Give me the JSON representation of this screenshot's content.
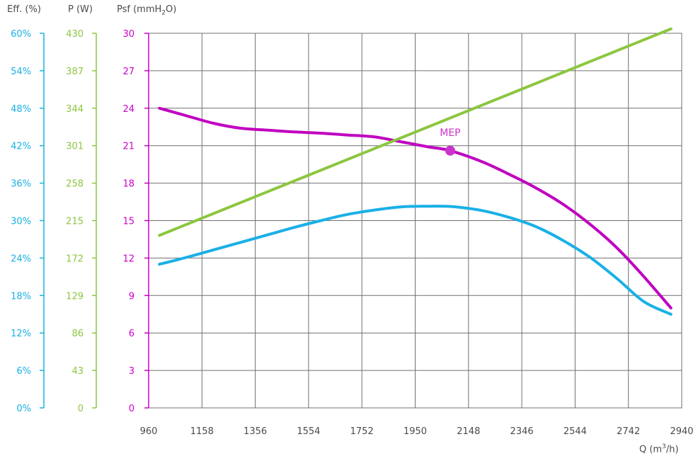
{
  "chart_data": {
    "type": "line",
    "axes": {
      "efficiency": {
        "label": "Eff. (%)",
        "ticks": [
          "0%",
          "6%",
          "12%",
          "18%",
          "24%",
          "30%",
          "36%",
          "42%",
          "48%",
          "54%",
          "60%"
        ],
        "range": [
          0,
          60
        ],
        "color": "#1ab0e6"
      },
      "power": {
        "label": "P (W)",
        "ticks": [
          "0",
          "43",
          "86",
          "129",
          "172",
          "215",
          "258",
          "301",
          "344",
          "387",
          "430"
        ],
        "range": [
          0,
          430
        ],
        "color": "#8cc63f"
      },
      "pressure": {
        "label_prefix": "Psf (mmH",
        "label_sub": "2",
        "label_suffix": "O)",
        "ticks": [
          "0",
          "3",
          "6",
          "9",
          "12",
          "15",
          "18",
          "21",
          "24",
          "27",
          "30"
        ],
        "range": [
          0,
          30
        ],
        "color": "#cc00cc"
      },
      "flow": {
        "label_prefix": "Q (m",
        "label_sup": "3",
        "label_suffix": "/h)",
        "ticks": [
          "960",
          "1158",
          "1356",
          "1554",
          "1752",
          "1950",
          "2148",
          "2346",
          "2544",
          "2742",
          "2940"
        ],
        "range": [
          960,
          2940
        ]
      }
    },
    "series": [
      {
        "axis": "pressure",
        "color": "#c000c0",
        "x": [
          1000,
          1100,
          1200,
          1300,
          1400,
          1500,
          1600,
          1700,
          1800,
          1900,
          2000,
          2080,
          2200,
          2300,
          2400,
          2500,
          2600,
          2700,
          2800,
          2900
        ],
        "y": [
          24.0,
          23.4,
          22.8,
          22.4,
          22.25,
          22.1,
          22.0,
          21.85,
          21.7,
          21.3,
          20.9,
          20.6,
          19.7,
          18.7,
          17.6,
          16.3,
          14.7,
          12.8,
          10.5,
          8.0
        ]
      },
      {
        "axis": "power",
        "color": "#8cc63f",
        "x": [
          1000,
          2900
        ],
        "y": [
          198,
          435
        ]
      },
      {
        "axis": "efficiency",
        "color": "#1ab0e6",
        "x": [
          1000,
          1100,
          1200,
          1300,
          1400,
          1500,
          1600,
          1700,
          1800,
          1900,
          2000,
          2050,
          2100,
          2200,
          2300,
          2400,
          2500,
          2600,
          2700,
          2800,
          2900
        ],
        "y": [
          23.0,
          24.1,
          25.3,
          26.5,
          27.7,
          28.9,
          30.0,
          31.0,
          31.7,
          32.2,
          32.3,
          32.3,
          32.2,
          31.6,
          30.5,
          29.0,
          26.8,
          24.1,
          20.7,
          17.0,
          15.0
        ]
      }
    ],
    "annotations": [
      {
        "text": "MEP",
        "x": 2080,
        "y": 20.6,
        "axis": "pressure",
        "color": "#cc33cc"
      }
    ],
    "grid": true
  }
}
